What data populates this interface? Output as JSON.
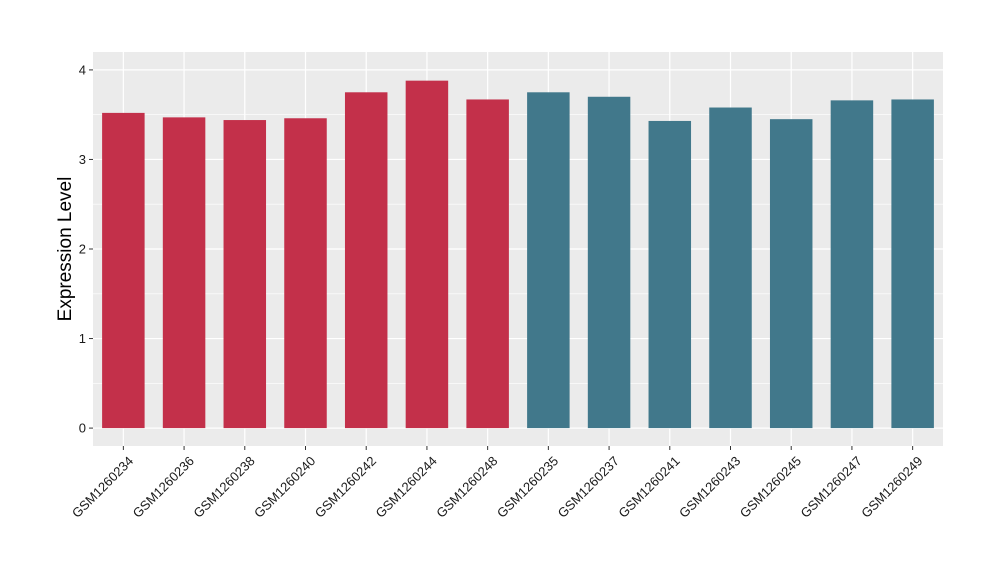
{
  "chart_data": {
    "type": "bar",
    "title": "",
    "xlabel": "",
    "ylabel": "Expression Level",
    "ylim": [
      -0.2,
      4.2
    ],
    "yticks": [
      0,
      1,
      2,
      3,
      4
    ],
    "grid": true,
    "panel_background": "#ebebeb",
    "grid_color": "#ffffff",
    "categories": [
      "GSM1260234",
      "GSM1260236",
      "GSM1260238",
      "GSM1260240",
      "GSM1260242",
      "GSM1260244",
      "GSM1260248",
      "GSM1260235",
      "GSM1260237",
      "GSM1260241",
      "GSM1260243",
      "GSM1260245",
      "GSM1260247",
      "GSM1260249"
    ],
    "values": [
      3.52,
      3.47,
      3.44,
      3.46,
      3.75,
      3.88,
      3.67,
      3.75,
      3.7,
      3.43,
      3.58,
      3.45,
      3.66,
      3.67
    ],
    "groups": [
      0,
      0,
      0,
      0,
      0,
      0,
      0,
      1,
      1,
      1,
      1,
      1,
      1,
      1
    ],
    "group_colors": [
      "#c3304a",
      "#41788b"
    ]
  }
}
